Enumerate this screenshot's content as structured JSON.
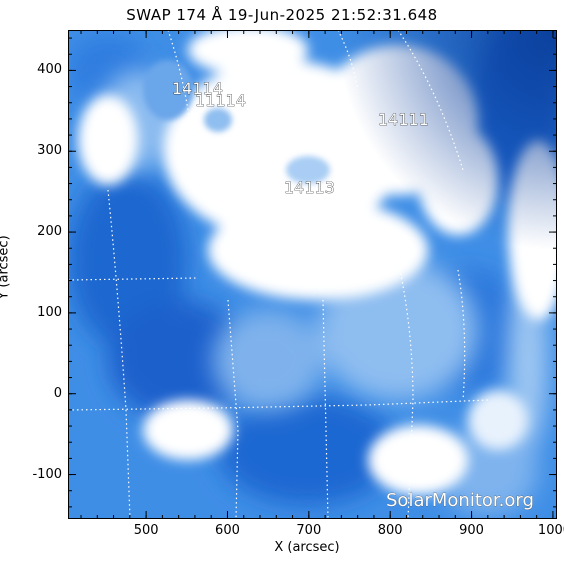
{
  "title": "SWAP 174 Å 19-Jun-2025 21:52:31.648",
  "x_axis": {
    "label": "X (arcsec)",
    "ticks": [
      "500",
      "600",
      "700",
      "800",
      "900",
      "1000"
    ]
  },
  "y_axis": {
    "label": "Y (arcsec)",
    "ticks": [
      "400",
      "300",
      "200",
      "100",
      "0",
      "-100"
    ]
  },
  "regions": [
    {
      "label": "14114"
    },
    {
      "label": "11114"
    },
    {
      "label": "14111"
    },
    {
      "label": "14113"
    }
  ],
  "watermark": "SolarMonitor.org",
  "colors": {
    "dark_blue": "#0d4fb8",
    "mid_blue": "#3f8ee6",
    "light_blue": "#9fc7f2",
    "white": "#ffffff"
  }
}
